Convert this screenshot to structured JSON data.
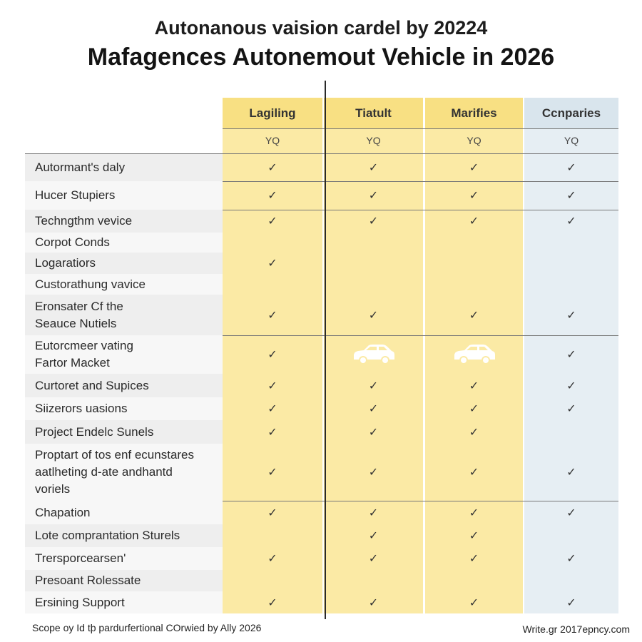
{
  "title_line1": "Autonanous vaision cardel by 20224",
  "title_line2": "Mafagences Autonemout Vehicle in 2026",
  "columns": [
    {
      "label": "Lagiling",
      "sub": "YQ"
    },
    {
      "label": "Tiatult",
      "sub": "YQ"
    },
    {
      "label": "Marifies",
      "sub": "YQ"
    },
    {
      "label": "Ccnparies",
      "sub": "YQ"
    }
  ],
  "check_mark": "✓",
  "rows": [
    {
      "label": [
        "Autormant's daly"
      ],
      "cells": [
        "check",
        "check",
        "check",
        "check"
      ]
    },
    {
      "label": [
        "Hucer Stupiers"
      ],
      "cells": [
        "check",
        "check",
        "check",
        "check"
      ]
    },
    {
      "label": [
        "Techngthm vevice"
      ],
      "cells": [
        "check",
        "check",
        "check",
        "check"
      ]
    },
    {
      "label": [
        "Corpot Conds"
      ],
      "cells": [
        "",
        "",
        "",
        ""
      ]
    },
    {
      "label": [
        "Logaratiors"
      ],
      "cells": [
        "check",
        "",
        "",
        ""
      ]
    },
    {
      "label": [
        "Custorathung vavice"
      ],
      "cells": [
        "",
        "",
        "",
        ""
      ]
    },
    {
      "label": [
        "Eronsater Cf the",
        "Seauce Nutiels"
      ],
      "cells": [
        "check",
        "check",
        "check",
        "check"
      ]
    },
    {
      "label": [
        "Eutorcmeer vating",
        "Fartor Macket"
      ],
      "cells": [
        "check",
        "car-icon",
        "car-icon",
        "check"
      ]
    },
    {
      "label": [
        "Curtoret and Supices"
      ],
      "cells": [
        "check",
        "check",
        "check",
        "check"
      ]
    },
    {
      "label": [
        "Siizerors uasions"
      ],
      "cells": [
        "check",
        "check",
        "check",
        "check"
      ]
    },
    {
      "label": [
        "Project Endelc Sunels"
      ],
      "cells": [
        "check",
        "check",
        "check",
        ""
      ]
    },
    {
      "label": [
        "Proptart of tos enf ecunstares",
        "aatlheting d-ate andhantd",
        "voriels"
      ],
      "cells": [
        "check",
        "check",
        "check",
        "check"
      ]
    },
    {
      "label": [
        "Chapation"
      ],
      "cells": [
        "check",
        "check",
        "check",
        "check"
      ]
    },
    {
      "label": [
        "Lote comprantation Sturels"
      ],
      "cells": [
        "",
        "check",
        "check",
        ""
      ]
    },
    {
      "label": [
        "Trersporcearsen'"
      ],
      "cells": [
        "check",
        "check",
        "check",
        "check"
      ]
    },
    {
      "label": [
        "Presoant Rolessate"
      ],
      "cells": [
        "",
        "",
        "",
        ""
      ]
    },
    {
      "label": [
        "Ersining Support"
      ],
      "cells": [
        "check",
        "check",
        "check",
        "check"
      ]
    }
  ],
  "footer_left": "Scope oy Id tþ pardurfertional COrwied by Ally 2026",
  "footer_right": "Write.gr 2017epncy.com"
}
